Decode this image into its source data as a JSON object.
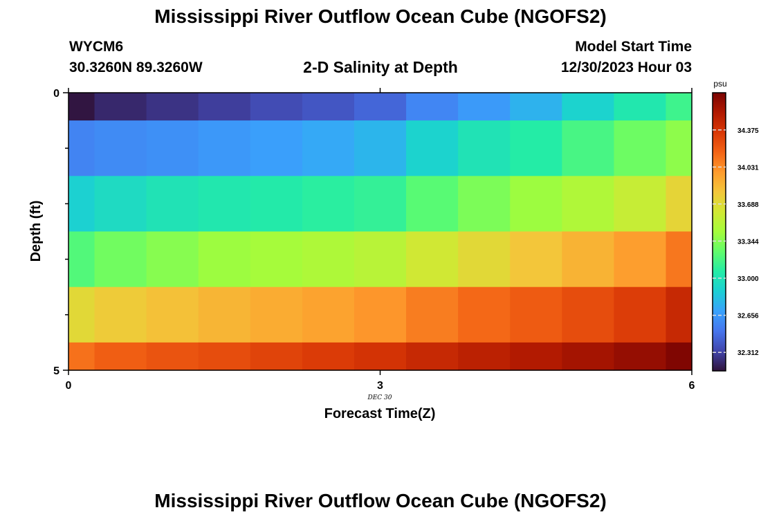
{
  "header": {
    "title": "Mississippi River Outflow Ocean Cube (NGOFS2)",
    "station_id": "WYCM6",
    "coordinates": "30.3260N  89.3260W",
    "chart_title": "2-D Salinity at Depth",
    "model_start_label": "Model Start Time",
    "model_start_value": "12/30/2023 Hour 03"
  },
  "footer": {
    "title": "Mississippi River Outflow Ocean Cube (NGOFS2)"
  },
  "chart_data": {
    "type": "heatmap",
    "title": "2-D Salinity at Depth",
    "xlabel": "Forecast Time(Z)",
    "ylabel": "Depth (ft)",
    "x_ticks": [
      "0",
      "3",
      "6"
    ],
    "y_ticks": [
      "0",
      "5"
    ],
    "date_label": "DEC  30",
    "xlim": [
      0,
      6
    ],
    "ylim": [
      0,
      5
    ],
    "x": [
      0,
      0.5,
      1,
      1.5,
      2,
      2.5,
      3,
      3.5,
      4,
      4.5,
      5,
      5.5,
      6
    ],
    "depth_bands": [
      [
        0,
        0.5
      ],
      [
        0.5,
        1.5
      ],
      [
        1.5,
        2.5
      ],
      [
        2.5,
        3.5
      ],
      [
        3.5,
        4.5
      ],
      [
        4.5,
        5
      ]
    ],
    "values": [
      [
        32.15,
        32.22,
        32.26,
        32.3,
        32.35,
        32.39,
        32.45,
        32.58,
        32.66,
        32.76,
        32.9,
        33.03,
        33.14
      ],
      [
        32.57,
        32.6,
        32.62,
        32.65,
        32.68,
        32.72,
        32.77,
        32.9,
        33.0,
        33.06,
        33.17,
        33.28,
        33.37
      ],
      [
        32.89,
        32.95,
        33.0,
        33.03,
        33.05,
        33.08,
        33.11,
        33.22,
        33.32,
        33.41,
        33.48,
        33.57,
        33.72
      ],
      [
        33.2,
        33.29,
        33.35,
        33.41,
        33.44,
        33.47,
        33.51,
        33.61,
        33.7,
        33.8,
        33.88,
        33.97,
        34.1
      ],
      [
        33.7,
        33.77,
        33.82,
        33.87,
        33.91,
        33.95,
        34.0,
        34.08,
        34.15,
        34.2,
        34.26,
        34.33,
        34.44
      ],
      [
        34.12,
        34.19,
        34.23,
        34.26,
        34.3,
        34.34,
        34.38,
        34.44,
        34.49,
        34.53,
        34.58,
        34.63,
        34.7
      ]
    ],
    "colorbar": {
      "unit": "psu",
      "ticks": [
        "32.312",
        "32.656",
        "33.000",
        "33.344",
        "33.688",
        "34.031",
        "34.375"
      ],
      "range": [
        32.14,
        34.72
      ]
    },
    "colormap": [
      "#30123b",
      "#4145ab",
      "#4675ed",
      "#39a2fc",
      "#1bcfd4",
      "#24eca6",
      "#61fc6c",
      "#a4fc3b",
      "#d1e834",
      "#f3c63a",
      "#fe9b2d",
      "#f36315",
      "#d93806",
      "#b11901",
      "#7a0402"
    ]
  }
}
